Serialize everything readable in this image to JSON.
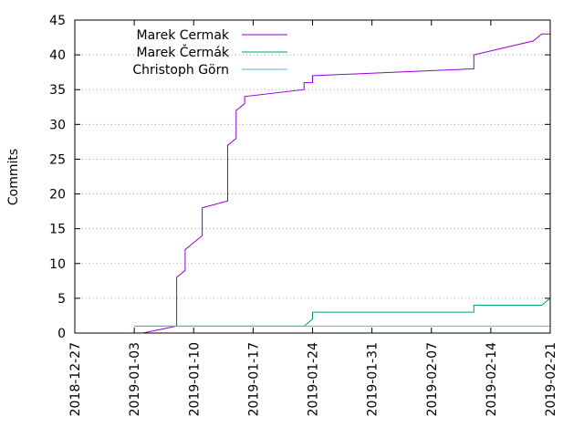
{
  "chart_data": {
    "type": "line",
    "title": "",
    "xlabel": "",
    "ylabel": "Commits",
    "ylim": [
      0,
      45
    ],
    "y_ticks": [
      0,
      5,
      10,
      15,
      20,
      25,
      30,
      35,
      40,
      45
    ],
    "xlim": [
      "2018-12-27",
      "2019-02-21"
    ],
    "x_tick_labels": [
      "2018-12-27",
      "2019-01-03",
      "2019-01-10",
      "2019-01-17",
      "2019-01-24",
      "2019-01-31",
      "2019-02-07",
      "2019-02-14",
      "2019-02-21"
    ],
    "grid": "horizontal dotted",
    "legend_position": "top-left",
    "series": [
      {
        "name": "Marek Cermak",
        "color": "#9400d3",
        "points": [
          [
            "2019-01-04",
            0
          ],
          [
            "2019-01-08",
            1
          ],
          [
            "2019-01-08",
            8
          ],
          [
            "2019-01-09",
            9
          ],
          [
            "2019-01-09",
            12
          ],
          [
            "2019-01-10",
            13
          ],
          [
            "2019-01-11",
            14
          ],
          [
            "2019-01-11",
            18
          ],
          [
            "2019-01-14",
            19
          ],
          [
            "2019-01-14",
            27
          ],
          [
            "2019-01-15",
            28
          ],
          [
            "2019-01-15",
            32
          ],
          [
            "2019-01-16",
            33
          ],
          [
            "2019-01-16",
            34
          ],
          [
            "2019-01-23",
            35
          ],
          [
            "2019-01-23",
            36
          ],
          [
            "2019-01-24",
            36
          ],
          [
            "2019-01-24",
            37
          ],
          [
            "2019-02-12",
            38
          ],
          [
            "2019-02-12",
            40
          ],
          [
            "2019-02-19",
            42
          ],
          [
            "2019-02-20",
            43
          ],
          [
            "2019-02-21",
            43
          ],
          [
            "2019-02-21",
            45
          ]
        ]
      },
      {
        "name": "Marek Čermák",
        "color": "#009e73",
        "points": [
          [
            "2019-01-03",
            1
          ],
          [
            "2019-01-23",
            1
          ],
          [
            "2019-01-24",
            2
          ],
          [
            "2019-01-24",
            3
          ],
          [
            "2019-02-12",
            3
          ],
          [
            "2019-02-12",
            4
          ],
          [
            "2019-02-20",
            4
          ],
          [
            "2019-02-21",
            5
          ],
          [
            "2019-02-21",
            6
          ]
        ]
      },
      {
        "name": "Christoph Görn",
        "color": "#56b4e9",
        "points": [
          [
            "2019-01-03",
            1
          ],
          [
            "2019-02-21",
            1
          ]
        ]
      }
    ]
  }
}
